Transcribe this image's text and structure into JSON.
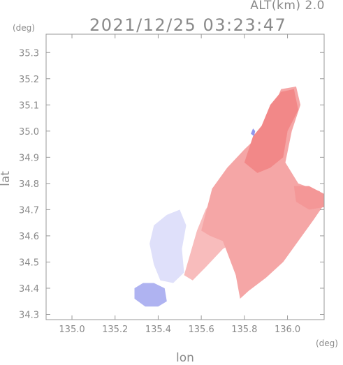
{
  "header": {
    "altitude": "ALT(km) 2.0",
    "timestamp": "2021/12/25 03:23:47"
  },
  "chart_data": {
    "type": "heatmap",
    "title": "2021/12/25 03:23:47",
    "subtitle": "ALT(km) 2.0",
    "xlabel": "lon",
    "ylabel": "lat",
    "x_unit": "(deg)",
    "y_unit": "(deg)",
    "xlim": [
      134.88,
      136.17
    ],
    "ylim": [
      34.28,
      35.37
    ],
    "x_ticks": [
      135.0,
      135.2,
      135.4,
      135.6,
      135.8,
      136.0
    ],
    "x_tick_labels": [
      "135.0",
      "135.2",
      "135.4",
      "135.6",
      "135.8",
      "136.0"
    ],
    "y_ticks": [
      34.3,
      34.4,
      34.5,
      34.6,
      34.7,
      34.8,
      34.9,
      35.0,
      35.1,
      35.2,
      35.3
    ],
    "y_tick_labels": [
      "34.3",
      "34.4",
      "34.5",
      "34.6",
      "34.7",
      "34.8",
      "34.9",
      "35.0",
      "35.1",
      "35.2",
      "35.3"
    ],
    "grid": false,
    "legend": "none",
    "colors": {
      "away": "#ef6a6a",
      "toward": "#6e74e6",
      "neutral": "#ffffff",
      "axis": "#999999"
    },
    "regions": [
      {
        "sign": "away",
        "intensity": 0.45,
        "poly": [
          [
            135.52,
            34.45
          ],
          [
            135.58,
            34.62
          ],
          [
            135.62,
            34.7
          ],
          [
            135.7,
            34.8
          ],
          [
            135.78,
            34.86
          ],
          [
            135.85,
            34.92
          ],
          [
            135.93,
            34.88
          ],
          [
            135.98,
            34.82
          ],
          [
            135.95,
            34.72
          ],
          [
            135.88,
            34.65
          ],
          [
            135.8,
            34.6
          ],
          [
            135.7,
            34.55
          ],
          [
            135.62,
            34.48
          ],
          [
            135.56,
            34.43
          ]
        ]
      },
      {
        "sign": "away",
        "intensity": 0.6,
        "poly": [
          [
            135.6,
            34.62
          ],
          [
            135.65,
            34.78
          ],
          [
            135.72,
            34.86
          ],
          [
            135.8,
            34.93
          ],
          [
            135.85,
            34.97
          ],
          [
            135.92,
            35.0
          ],
          [
            135.93,
            35.08
          ],
          [
            135.97,
            35.16
          ],
          [
            136.04,
            35.17
          ],
          [
            136.06,
            35.1
          ],
          [
            136.02,
            35.0
          ],
          [
            135.99,
            34.88
          ],
          [
            136.05,
            34.8
          ],
          [
            136.15,
            34.77
          ],
          [
            136.17,
            34.72
          ],
          [
            136.12,
            34.66
          ],
          [
            136.05,
            34.58
          ],
          [
            135.98,
            34.5
          ],
          [
            135.9,
            34.44
          ],
          [
            135.82,
            34.39
          ],
          [
            135.78,
            34.36
          ],
          [
            135.76,
            34.45
          ],
          [
            135.7,
            34.58
          ],
          [
            135.64,
            34.6
          ]
        ]
      },
      {
        "sign": "away",
        "intensity": 0.8,
        "poly": [
          [
            135.8,
            34.88
          ],
          [
            135.84,
            34.98
          ],
          [
            135.88,
            35.02
          ],
          [
            135.92,
            35.1
          ],
          [
            135.97,
            35.15
          ],
          [
            136.03,
            35.16
          ],
          [
            136.05,
            35.08
          ],
          [
            136.0,
            35.0
          ],
          [
            135.98,
            34.9
          ],
          [
            135.92,
            34.86
          ],
          [
            135.86,
            34.84
          ]
        ]
      },
      {
        "sign": "away",
        "intensity": 0.7,
        "poly": [
          [
            136.03,
            34.79
          ],
          [
            136.1,
            34.79
          ],
          [
            136.17,
            34.76
          ],
          [
            136.17,
            34.71
          ],
          [
            136.1,
            34.7
          ],
          [
            136.04,
            34.73
          ]
        ]
      },
      {
        "sign": "toward",
        "intensity": 0.22,
        "poly": [
          [
            135.38,
            34.49
          ],
          [
            135.36,
            34.57
          ],
          [
            135.38,
            34.64
          ],
          [
            135.44,
            34.68
          ],
          [
            135.5,
            34.7
          ],
          [
            135.53,
            34.64
          ],
          [
            135.51,
            34.55
          ],
          [
            135.52,
            34.46
          ],
          [
            135.47,
            34.42
          ],
          [
            135.41,
            34.43
          ]
        ]
      },
      {
        "sign": "toward",
        "intensity": 0.55,
        "poly": [
          [
            135.29,
            34.36
          ],
          [
            135.29,
            34.4
          ],
          [
            135.33,
            34.42
          ],
          [
            135.38,
            34.42
          ],
          [
            135.43,
            34.4
          ],
          [
            135.44,
            34.35
          ],
          [
            135.4,
            34.33
          ],
          [
            135.34,
            34.33
          ]
        ]
      },
      {
        "sign": "toward",
        "intensity": 0.75,
        "poly": [
          [
            135.83,
            34.99
          ],
          [
            135.84,
            35.01
          ],
          [
            135.85,
            35.0
          ],
          [
            135.845,
            34.98
          ]
        ]
      }
    ]
  }
}
